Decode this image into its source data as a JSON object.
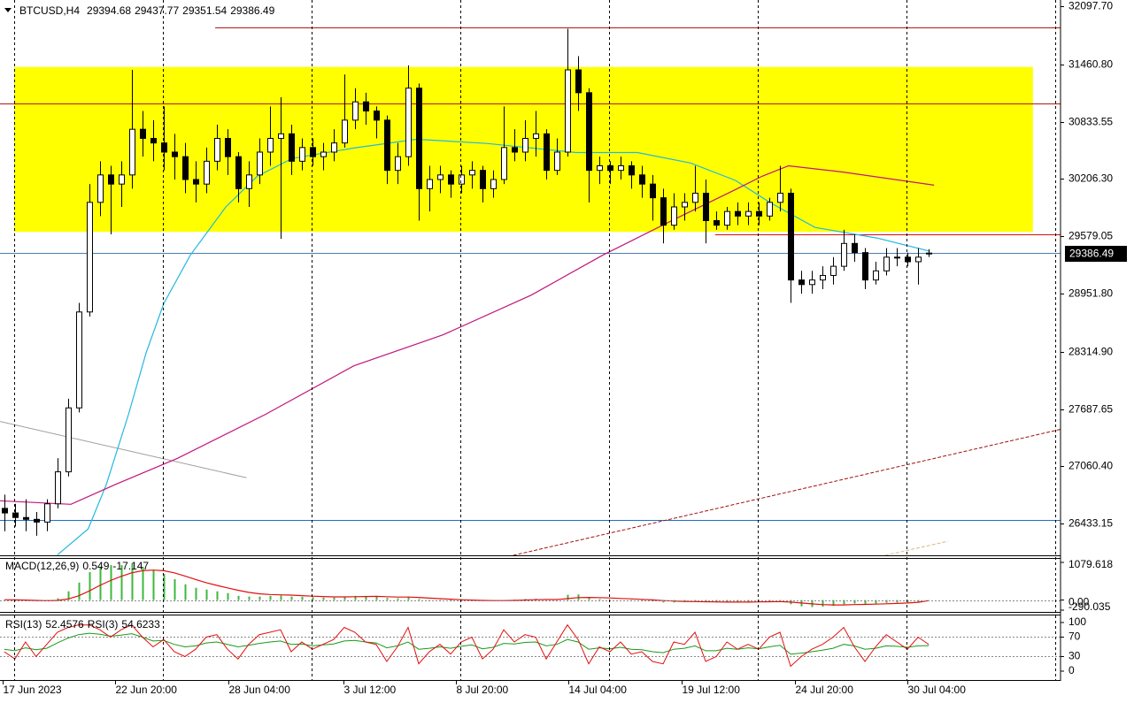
{
  "chart_data": {
    "type": "candlestick",
    "title": "BTCUSD,H4",
    "candles": [
      [
        26600,
        26750,
        26350,
        26550
      ],
      [
        26550,
        26650,
        26400,
        26500
      ],
      [
        26500,
        26700,
        26350,
        26480
      ],
      [
        26480,
        26560,
        26300,
        26450
      ],
      [
        26450,
        26700,
        26350,
        26650
      ],
      [
        26650,
        27150,
        26600,
        27000
      ],
      [
        27000,
        27800,
        26950,
        27700
      ],
      [
        27700,
        28850,
        27650,
        28750
      ],
      [
        28750,
        30150,
        28700,
        29950
      ],
      [
        29950,
        30400,
        29800,
        30250
      ],
      [
        30250,
        30350,
        29600,
        30150
      ],
      [
        30150,
        30400,
        29900,
        30250
      ],
      [
        30250,
        31400,
        30100,
        30750
      ],
      [
        30750,
        30950,
        30450,
        30650
      ],
      [
        30650,
        30850,
        30400,
        30600
      ],
      [
        30600,
        31000,
        30300,
        30500
      ],
      [
        30500,
        30700,
        30200,
        30450
      ],
      [
        30450,
        30600,
        30050,
        30200
      ],
      [
        30200,
        30400,
        29950,
        30150
      ],
      [
        30150,
        30550,
        30050,
        30400
      ],
      [
        30400,
        30800,
        30300,
        30650
      ],
      [
        30650,
        30750,
        30250,
        30450
      ],
      [
        30450,
        30500,
        29950,
        30100
      ],
      [
        30100,
        30400,
        29900,
        30250
      ],
      [
        30250,
        30650,
        30150,
        30500
      ],
      [
        30500,
        31000,
        30350,
        30650
      ],
      [
        30650,
        31100,
        29550,
        30700
      ],
      [
        30700,
        30800,
        30250,
        30400
      ],
      [
        30400,
        30650,
        30300,
        30550
      ],
      [
        30550,
        30650,
        30350,
        30450
      ],
      [
        30450,
        30600,
        30300,
        30500
      ],
      [
        30500,
        30750,
        30400,
        30600
      ],
      [
        30600,
        31350,
        30550,
        30850
      ],
      [
        30850,
        31200,
        30750,
        31050
      ],
      [
        31050,
        31150,
        30800,
        30950
      ],
      [
        30950,
        31000,
        30650,
        30850
      ],
      [
        30850,
        30900,
        30150,
        30300
      ],
      [
        30300,
        30600,
        30150,
        30450
      ],
      [
        30450,
        31450,
        30350,
        31200
      ],
      [
        31200,
        31250,
        29750,
        30100
      ],
      [
        30100,
        30350,
        29850,
        30200
      ],
      [
        30200,
        30350,
        30050,
        30250
      ],
      [
        30250,
        30300,
        30000,
        30150
      ],
      [
        30150,
        30350,
        30050,
        30250
      ],
      [
        30250,
        30400,
        30100,
        30300
      ],
      [
        30300,
        30350,
        29950,
        30100
      ],
      [
        30100,
        30300,
        30000,
        30200
      ],
      [
        30200,
        31000,
        30150,
        30550
      ],
      [
        30550,
        30750,
        30400,
        30500
      ],
      [
        30500,
        30850,
        30400,
        30650
      ],
      [
        30650,
        30950,
        30450,
        30700
      ],
      [
        30700,
        30750,
        30200,
        30300
      ],
      [
        30300,
        30650,
        30250,
        30500
      ],
      [
        30500,
        31850,
        30450,
        31400
      ],
      [
        31400,
        31550,
        30950,
        31150
      ],
      [
        31150,
        31200,
        29950,
        30300
      ],
      [
        30300,
        30450,
        30150,
        30350
      ],
      [
        30350,
        30400,
        30150,
        30300
      ],
      [
        30300,
        30450,
        30200,
        30350
      ],
      [
        30350,
        30400,
        30100,
        30250
      ],
      [
        30250,
        30350,
        30000,
        30150
      ],
      [
        30150,
        30250,
        29750,
        30000
      ],
      [
        30000,
        30100,
        29500,
        29700
      ],
      [
        29700,
        30050,
        29650,
        29900
      ],
      [
        29900,
        30050,
        29750,
        29950
      ],
      [
        29950,
        30350,
        29850,
        30050
      ],
      [
        30050,
        30200,
        29500,
        29750
      ],
      [
        29750,
        29850,
        29650,
        29700
      ],
      [
        29700,
        29900,
        29650,
        29850
      ],
      [
        29850,
        29950,
        29700,
        29800
      ],
      [
        29800,
        29950,
        29700,
        29850
      ],
      [
        29850,
        29950,
        29700,
        29800
      ],
      [
        29800,
        30000,
        29750,
        29950
      ],
      [
        29950,
        30350,
        29850,
        30050
      ],
      [
        30050,
        30100,
        28850,
        29100
      ],
      [
        29100,
        29200,
        28950,
        29050
      ],
      [
        29050,
        29200,
        28950,
        29100
      ],
      [
        29100,
        29250,
        29000,
        29150
      ],
      [
        29150,
        29350,
        29050,
        29250
      ],
      [
        29250,
        29650,
        29200,
        29500
      ],
      [
        29500,
        29600,
        29300,
        29400
      ],
      [
        29400,
        29450,
        29000,
        29100
      ],
      [
        29100,
        29300,
        29050,
        29200
      ],
      [
        29200,
        29450,
        29150,
        29350
      ],
      [
        29350,
        29450,
        29250,
        29350
      ],
      [
        29350,
        29400,
        29250,
        29300
      ],
      [
        29300,
        29450,
        29050,
        29350
      ],
      [
        29394.68,
        29437.77,
        29351.54,
        29386.49
      ]
    ],
    "bull_color": "#ffffff",
    "bear_color": "#000000",
    "xlim": [
      -0.4,
      99.4
    ],
    "xticks": [
      {
        "value": -0.15,
        "label": "17 Jun 2023"
      },
      {
        "value": 10.43,
        "label": "22 Jun 20:00"
      },
      {
        "value": 21.1,
        "label": "28 Jun 04:00"
      },
      {
        "value": 31.93,
        "label": "3 Jul 12:00"
      },
      {
        "value": 42.52,
        "label": "8 Jul 20:00"
      },
      {
        "value": 53.1,
        "label": "14 Jul 04:00"
      },
      {
        "value": 63.77,
        "label": "19 Jul 12:00"
      },
      {
        "value": 74.43,
        "label": "24 Jul 20:00"
      },
      {
        "value": 85.02,
        "label": "30 Jul 04:00"
      }
    ],
    "xgrid": [
      0.93,
      14.93,
      28.93,
      42.93,
      56.93,
      70.93,
      84.93,
      98.93
    ],
    "ylim": [
      26086,
      32165
    ],
    "yticks": [
      {
        "value": 32097.7,
        "label": "32097.70"
      },
      {
        "value": 31460.8,
        "label": "31460.80"
      },
      30833.55,
      {
        "value": 30206.3,
        "label": "30206.30"
      },
      29579.05,
      {
        "value": 28951.8,
        "label": "28951.80"
      },
      {
        "value": 28314.9,
        "label": "28314.90"
      },
      27687.65,
      {
        "value": 27060.4,
        "label": "27060.40"
      },
      26433.15
    ],
    "last_price": 29386.49,
    "rectangle": {
      "x": [
        0.93,
        96.8
      ],
      "y": [
        29627,
        31432
      ],
      "color": "#ffff00"
    },
    "hlines": [
      {
        "x": [
          19.85,
          99.4
        ],
        "value": 31866,
        "color": "#b01818"
      },
      {
        "x": [
          -0.4,
          99.4
        ],
        "value": 31036,
        "color": "#b01818"
      },
      {
        "x": [
          66.9,
          99.4
        ],
        "value": 29598,
        "color": "#d01010"
      },
      {
        "x": [
          -0.4,
          99.4
        ],
        "value": 29395,
        "color": "#4a7fb0"
      },
      {
        "x": [
          -0.4,
          99.4
        ],
        "value": 26471,
        "color": "#1e6fc8"
      }
    ],
    "trendlines": [
      {
        "x": [
          -0.4,
          22.8
        ],
        "y": [
          27552,
          26935
        ],
        "color": "#a0a0a0",
        "dash": false
      },
      {
        "x": [
          47.9,
          99.4
        ],
        "y": [
          26086,
          27465
        ],
        "color": "#a01010",
        "dash": true
      },
      {
        "x": [
          82.9,
          88.8
        ],
        "y": [
          26086,
          26240
        ],
        "color": "#d8b888",
        "dash": true
      }
    ],
    "moving_averages": [
      {
        "color": "#22b8e0",
        "x": [
          5.0,
          7.9,
          9.6,
          11.7,
          13.35,
          15.0,
          17.5,
          20.85,
          23.8,
          27.1,
          32.9,
          38.8,
          45.4,
          53.8,
          59.6,
          64.6,
          68.8,
          72.1,
          76.3,
          82.1,
          87.1
        ],
        "values": [
          26090,
          26375,
          26858,
          27630,
          28305,
          28840,
          29370,
          29900,
          30235,
          30430,
          30545,
          30640,
          30595,
          30495,
          30495,
          30380,
          30190,
          29945,
          29675,
          29560,
          29415
        ]
      },
      {
        "color": "#c0167a",
        "x": [
          -0.4,
          6.27,
          10.4,
          16.3,
          24.6,
          32.9,
          41.3,
          49.6,
          56.3,
          62.9,
          68.8,
          71.3,
          73.8,
          78.8,
          87.5
        ],
        "values": [
          26683,
          26645,
          26858,
          27148,
          27630,
          28160,
          28500,
          28935,
          29370,
          29755,
          30090,
          30235,
          30350,
          30283,
          30138
        ]
      }
    ],
    "macd": {
      "name": "MACD(12,26,9)",
      "ylim": [
        -290.035,
        1079.618
      ],
      "yticks": [
        1079.618,
        {
          "value": 0,
          "label": "0.00"
        },
        -290.035
      ],
      "histogram": {
        "color": "#3cb83c",
        "values": [
          0,
          -20,
          -30,
          -40,
          -30,
          50,
          250,
          500,
          800,
          950,
          1000,
          1000,
          1050,
          950,
          850,
          750,
          600,
          450,
          350,
          300,
          250,
          200,
          120,
          100,
          100,
          120,
          130,
          100,
          90,
          80,
          70,
          70,
          100,
          120,
          120,
          110,
          60,
          50,
          100,
          30,
          -10,
          -20,
          -30,
          -30,
          -20,
          -30,
          -30,
          0,
          10,
          30,
          40,
          20,
          20,
          150,
          160,
          60,
          30,
          10,
          0,
          -10,
          -20,
          -40,
          -70,
          -70,
          -60,
          -50,
          -60,
          -70,
          -70,
          -60,
          -50,
          -50,
          -40,
          -20,
          -120,
          -180,
          -200,
          -190,
          -170,
          -120,
          -100,
          -110,
          -100,
          -80,
          -70,
          -60,
          -50,
          0.549
        ]
      },
      "signal": {
        "color": "#e01010",
        "values": [
          10,
          5,
          0,
          -10,
          -20,
          -10,
          30,
          120,
          260,
          420,
          560,
          680,
          780,
          840,
          860,
          840,
          780,
          690,
          590,
          500,
          420,
          350,
          280,
          220,
          180,
          160,
          150,
          140,
          125,
          110,
          100,
          90,
          90,
          95,
          100,
          105,
          95,
          85,
          85,
          75,
          55,
          40,
          25,
          10,
          0,
          -10,
          -15,
          -15,
          -10,
          0,
          10,
          15,
          15,
          40,
          70,
          75,
          70,
          60,
          45,
          35,
          20,
          5,
          -15,
          -30,
          -40,
          -45,
          -50,
          -55,
          -60,
          -60,
          -58,
          -55,
          -50,
          -45,
          -60,
          -85,
          -110,
          -130,
          -140,
          -140,
          -130,
          -125,
          -118,
          -108,
          -98,
          -85,
          -65,
          -17.147
        ]
      }
    },
    "rsi": {
      "ylim": [
        -16.4,
        114.5
      ],
      "yticks": [
        100,
        70,
        30,
        0
      ],
      "levels": [
        70,
        30
      ],
      "series": [
        {
          "name": "RSI(13)",
          "color": "#1a9a1a",
          "values": [
            45,
            42,
            48,
            44,
            47,
            58,
            68,
            75,
            78,
            76,
            72,
            74,
            77,
            70,
            62,
            63,
            55,
            50,
            52,
            58,
            60,
            55,
            50,
            53,
            57,
            60,
            62,
            55,
            56,
            52,
            54,
            56,
            62,
            63,
            60,
            58,
            48,
            52,
            60,
            45,
            47,
            50,
            47,
            51,
            54,
            46,
            49,
            57,
            56,
            59,
            60,
            52,
            55,
            65,
            60,
            45,
            48,
            46,
            49,
            45,
            44,
            40,
            38,
            45,
            47,
            52,
            42,
            42,
            47,
            45,
            48,
            46,
            50,
            53,
            35,
            37,
            40,
            43,
            47,
            55,
            52,
            45,
            47,
            52,
            51,
            49,
            52,
            52.4576
          ]
        },
        {
          "name": "RSI(3)",
          "color": "#e01010",
          "values": [
            40,
            25,
            60,
            30,
            55,
            80,
            90,
            95,
            95,
            85,
            70,
            85,
            95,
            70,
            50,
            65,
            40,
            30,
            45,
            70,
            75,
            45,
            25,
            55,
            75,
            80,
            85,
            40,
            60,
            45,
            55,
            65,
            90,
            80,
            60,
            55,
            20,
            50,
            90,
            15,
            40,
            55,
            35,
            60,
            70,
            25,
            45,
            85,
            60,
            75,
            70,
            25,
            60,
            95,
            65,
            15,
            50,
            40,
            60,
            35,
            40,
            20,
            15,
            60,
            55,
            80,
            20,
            30,
            60,
            45,
            55,
            45,
            70,
            80,
            10,
            30,
            45,
            55,
            70,
            90,
            50,
            20,
            50,
            75,
            60,
            45,
            70,
            54.6233
          ]
        }
      ]
    }
  }
}
